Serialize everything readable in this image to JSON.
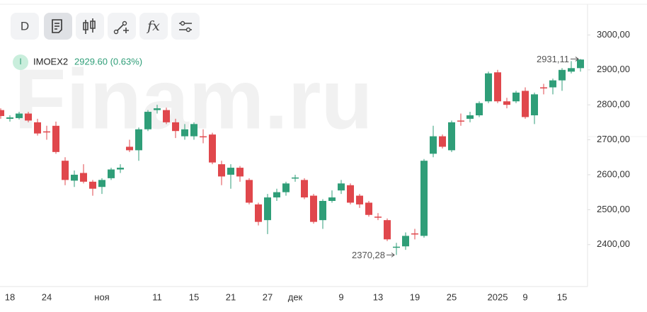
{
  "toolbar": {
    "interval": "D",
    "formula": "fx"
  },
  "legend": {
    "badge": "I",
    "name": "IMOEX2",
    "quote": "2929.60 (0.63%)"
  },
  "watermark": "Finam.ru",
  "chart_data": {
    "type": "candlestick",
    "categories": [
      null,
      "18",
      null,
      null,
      null,
      "24",
      null,
      null,
      null,
      null,
      null,
      "ноя",
      null,
      null,
      null,
      null,
      null,
      "11",
      null,
      null,
      null,
      "15",
      null,
      null,
      null,
      "21",
      null,
      null,
      null,
      "27",
      null,
      null,
      "дек",
      null,
      null,
      null,
      null,
      "9",
      null,
      null,
      null,
      "13",
      null,
      null,
      null,
      "19",
      null,
      null,
      null,
      "25",
      null,
      null,
      null,
      null,
      "2025",
      null,
      null,
      "9",
      null,
      null,
      null,
      "15",
      null,
      null
    ],
    "open": [
      2785,
      2760,
      2762,
      2775,
      2750,
      2724,
      2740,
      2640,
      2583,
      2605,
      2580,
      2565,
      2590,
      2615,
      2680,
      2670,
      2730,
      2785,
      2785,
      2750,
      2710,
      2710,
      2710,
      2715,
      2630,
      2600,
      2620,
      2585,
      2515,
      2470,
      2535,
      2550,
      2590,
      2585,
      2540,
      2470,
      2525,
      2555,
      2570,
      2540,
      2520,
      2480,
      2470,
      2393,
      2395,
      2432,
      2425,
      2660,
      2710,
      2670,
      2755,
      2760,
      2770,
      2810,
      2893,
      2810,
      2810,
      2840,
      2770,
      2850,
      2850,
      2870,
      2895,
      2905
    ],
    "high": [
      2790,
      2770,
      2780,
      2780,
      2760,
      2740,
      2752,
      2650,
      2612,
      2630,
      2585,
      2590,
      2620,
      2630,
      2700,
      2735,
      2785,
      2800,
      2792,
      2760,
      2745,
      2750,
      2730,
      2720,
      2640,
      2630,
      2625,
      2590,
      2520,
      2545,
      2560,
      2580,
      2600,
      2590,
      2545,
      2530,
      2555,
      2585,
      2575,
      2545,
      2525,
      2490,
      2475,
      2405,
      2435,
      2445,
      2645,
      2740,
      2715,
      2755,
      2775,
      2780,
      2810,
      2895,
      2900,
      2820,
      2840,
      2850,
      2835,
      2860,
      2875,
      2905,
      2925,
      2931.11
    ],
    "low": [
      2760,
      2752,
      2758,
      2750,
      2712,
      2700,
      2660,
      2570,
      2565,
      2575,
      2540,
      2545,
      2585,
      2605,
      2665,
      2640,
      2725,
      2775,
      2745,
      2705,
      2700,
      2700,
      2690,
      2630,
      2570,
      2560,
      2580,
      2515,
      2455,
      2430,
      2525,
      2540,
      2580,
      2530,
      2460,
      2445,
      2520,
      2545,
      2515,
      2505,
      2480,
      2470,
      2410,
      2370.28,
      2385,
      2415,
      2420,
      2650,
      2675,
      2665,
      2740,
      2750,
      2765,
      2805,
      2805,
      2790,
      2805,
      2760,
      2745,
      2830,
      2830,
      2840,
      2890,
      2895
    ],
    "close": [
      2768,
      2764,
      2775,
      2755,
      2718,
      2722,
      2665,
      2585,
      2600,
      2580,
      2560,
      2585,
      2615,
      2620,
      2670,
      2730,
      2780,
      2790,
      2750,
      2725,
      2730,
      2745,
      2708,
      2635,
      2595,
      2620,
      2595,
      2520,
      2465,
      2535,
      2550,
      2575,
      2592,
      2535,
      2465,
      2525,
      2535,
      2575,
      2520,
      2515,
      2485,
      2478,
      2415,
      2394,
      2425,
      2430,
      2640,
      2710,
      2680,
      2750,
      2752,
      2770,
      2805,
      2890,
      2810,
      2800,
      2835,
      2765,
      2830,
      2848,
      2870,
      2900,
      2905,
      2929.6
    ],
    "up_color": "#2f9e78",
    "down_color": "#e0474c",
    "ylim": [
      2280,
      3100
    ],
    "yticks": [
      {
        "value": 2400,
        "label": "2400,00"
      },
      {
        "value": 2500,
        "label": "2500,00"
      },
      {
        "value": 2600,
        "label": "2600,00"
      },
      {
        "value": 2700,
        "label": "2700,00"
      },
      {
        "value": 2800,
        "label": "2800,00"
      },
      {
        "value": 2900,
        "label": "2900,00"
      },
      {
        "value": 3000,
        "label": "3000,00"
      }
    ],
    "annotations": [
      {
        "text": "2931,11",
        "value": 2931.11,
        "index": 63
      },
      {
        "text": "2370,28",
        "value": 2370.28,
        "index": 43
      }
    ]
  }
}
